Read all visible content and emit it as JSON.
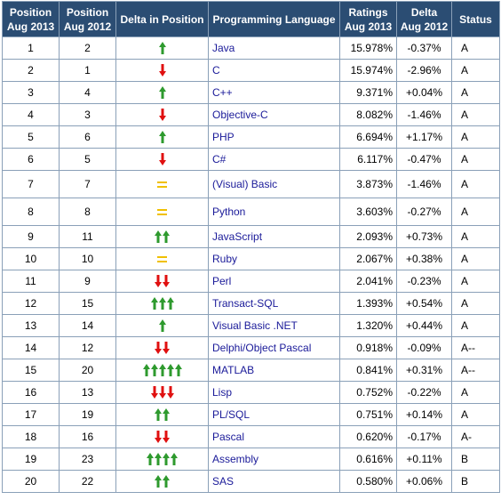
{
  "headers": {
    "pos2013": [
      "Position",
      "Aug 2013"
    ],
    "pos2012": [
      "Position",
      "Aug 2012"
    ],
    "delta_pos": "Delta in Position",
    "language": "Programming Language",
    "ratings": [
      "Ratings",
      "Aug 2013"
    ],
    "delta": [
      "Delta",
      "Aug 2012"
    ],
    "status": "Status"
  },
  "colors": {
    "up": "#2e9a2e",
    "down": "#e01010",
    "same": "#f0c000",
    "header_bg": "#2b4d73",
    "link": "#1a1a99"
  },
  "rows": [
    {
      "pos2013": "1",
      "pos2012": "2",
      "lang": "Java",
      "rating": "15.978%",
      "delta": "-0.37%",
      "status": "A",
      "move": "up",
      "count": 1
    },
    {
      "pos2013": "2",
      "pos2012": "1",
      "lang": "C",
      "rating": "15.974%",
      "delta": "-2.96%",
      "status": "A",
      "move": "down",
      "count": 1
    },
    {
      "pos2013": "3",
      "pos2012": "4",
      "lang": "C++",
      "rating": "9.371%",
      "delta": "+0.04%",
      "status": "A",
      "move": "up",
      "count": 1
    },
    {
      "pos2013": "4",
      "pos2012": "3",
      "lang": "Objective-C",
      "rating": "8.082%",
      "delta": "-1.46%",
      "status": "A",
      "move": "down",
      "count": 1
    },
    {
      "pos2013": "5",
      "pos2012": "6",
      "lang": "PHP",
      "rating": "6.694%",
      "delta": "+1.17%",
      "status": "A",
      "move": "up",
      "count": 1
    },
    {
      "pos2013": "6",
      "pos2012": "5",
      "lang": "C#",
      "rating": "6.117%",
      "delta": "-0.47%",
      "status": "A",
      "move": "down",
      "count": 1
    },
    {
      "pos2013": "7",
      "pos2012": "7",
      "lang": "(Visual) Basic",
      "rating": "3.873%",
      "delta": "-1.46%",
      "status": "A",
      "move": "same",
      "count": 1
    },
    {
      "pos2013": "8",
      "pos2012": "8",
      "lang": "Python",
      "rating": "3.603%",
      "delta": "-0.27%",
      "status": "A",
      "move": "same",
      "count": 1
    },
    {
      "pos2013": "9",
      "pos2012": "11",
      "lang": "JavaScript",
      "rating": "2.093%",
      "delta": "+0.73%",
      "status": "A",
      "move": "up",
      "count": 2
    },
    {
      "pos2013": "10",
      "pos2012": "10",
      "lang": "Ruby",
      "rating": "2.067%",
      "delta": "+0.38%",
      "status": "A",
      "move": "same",
      "count": 1
    },
    {
      "pos2013": "11",
      "pos2012": "9",
      "lang": "Perl",
      "rating": "2.041%",
      "delta": "-0.23%",
      "status": "A",
      "move": "down",
      "count": 2
    },
    {
      "pos2013": "12",
      "pos2012": "15",
      "lang": "Transact-SQL",
      "rating": "1.393%",
      "delta": "+0.54%",
      "status": "A",
      "move": "up",
      "count": 3
    },
    {
      "pos2013": "13",
      "pos2012": "14",
      "lang": "Visual Basic .NET",
      "rating": "1.320%",
      "delta": "+0.44%",
      "status": "A",
      "move": "up",
      "count": 1
    },
    {
      "pos2013": "14",
      "pos2012": "12",
      "lang": "Delphi/Object Pascal",
      "rating": "0.918%",
      "delta": "-0.09%",
      "status": "A--",
      "move": "down",
      "count": 2
    },
    {
      "pos2013": "15",
      "pos2012": "20",
      "lang": "MATLAB",
      "rating": "0.841%",
      "delta": "+0.31%",
      "status": "A--",
      "move": "up",
      "count": 5
    },
    {
      "pos2013": "16",
      "pos2012": "13",
      "lang": "Lisp",
      "rating": "0.752%",
      "delta": "-0.22%",
      "status": "A",
      "move": "down",
      "count": 3
    },
    {
      "pos2013": "17",
      "pos2012": "19",
      "lang": "PL/SQL",
      "rating": "0.751%",
      "delta": "+0.14%",
      "status": "A",
      "move": "up",
      "count": 2
    },
    {
      "pos2013": "18",
      "pos2012": "16",
      "lang": "Pascal",
      "rating": "0.620%",
      "delta": "-0.17%",
      "status": "A-",
      "move": "down",
      "count": 2
    },
    {
      "pos2013": "19",
      "pos2012": "23",
      "lang": "Assembly",
      "rating": "0.616%",
      "delta": "+0.11%",
      "status": "B",
      "move": "up",
      "count": 4
    },
    {
      "pos2013": "20",
      "pos2012": "22",
      "lang": "SAS",
      "rating": "0.580%",
      "delta": "+0.06%",
      "status": "B",
      "move": "up",
      "count": 2
    }
  ]
}
